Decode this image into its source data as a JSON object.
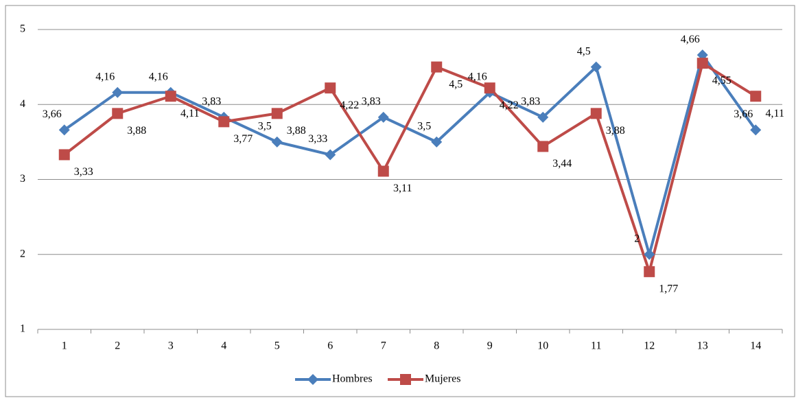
{
  "chart_data": {
    "type": "line",
    "categories": [
      "1",
      "2",
      "3",
      "4",
      "5",
      "6",
      "7",
      "8",
      "9",
      "10",
      "11",
      "12",
      "13",
      "14"
    ],
    "series": [
      {
        "name": "Hombres",
        "color": "#4a7ebb",
        "marker": "diamond",
        "values": [
          3.66,
          4.16,
          4.16,
          3.83,
          3.5,
          3.33,
          3.83,
          3.5,
          4.16,
          3.83,
          4.5,
          2,
          4.66,
          3.66
        ],
        "value_labels": [
          "3,66",
          "4,16",
          "4,16",
          "3,83",
          "3,5",
          "3,33",
          "3,83",
          "3,5",
          "4,16",
          "3,83",
          "4,5",
          "2",
          "4,66",
          "3,66"
        ]
      },
      {
        "name": "Mujeres",
        "color": "#be4b48",
        "marker": "square",
        "values": [
          3.33,
          3.88,
          4.11,
          3.77,
          3.88,
          4.22,
          3.11,
          4.5,
          4.22,
          3.44,
          3.88,
          1.77,
          4.55,
          4.11
        ],
        "value_labels": [
          "3,33",
          "3,88",
          "4,11",
          "3,77",
          "3,88",
          "4,22",
          "3,11",
          "4,5",
          "4,22",
          "3,44",
          "3,88",
          "1,77",
          "4,55",
          "4,11"
        ]
      }
    ],
    "ylim": [
      1,
      5
    ],
    "yticks": [
      1,
      2,
      3,
      4,
      5
    ],
    "grid": true,
    "legend": "bottom"
  }
}
